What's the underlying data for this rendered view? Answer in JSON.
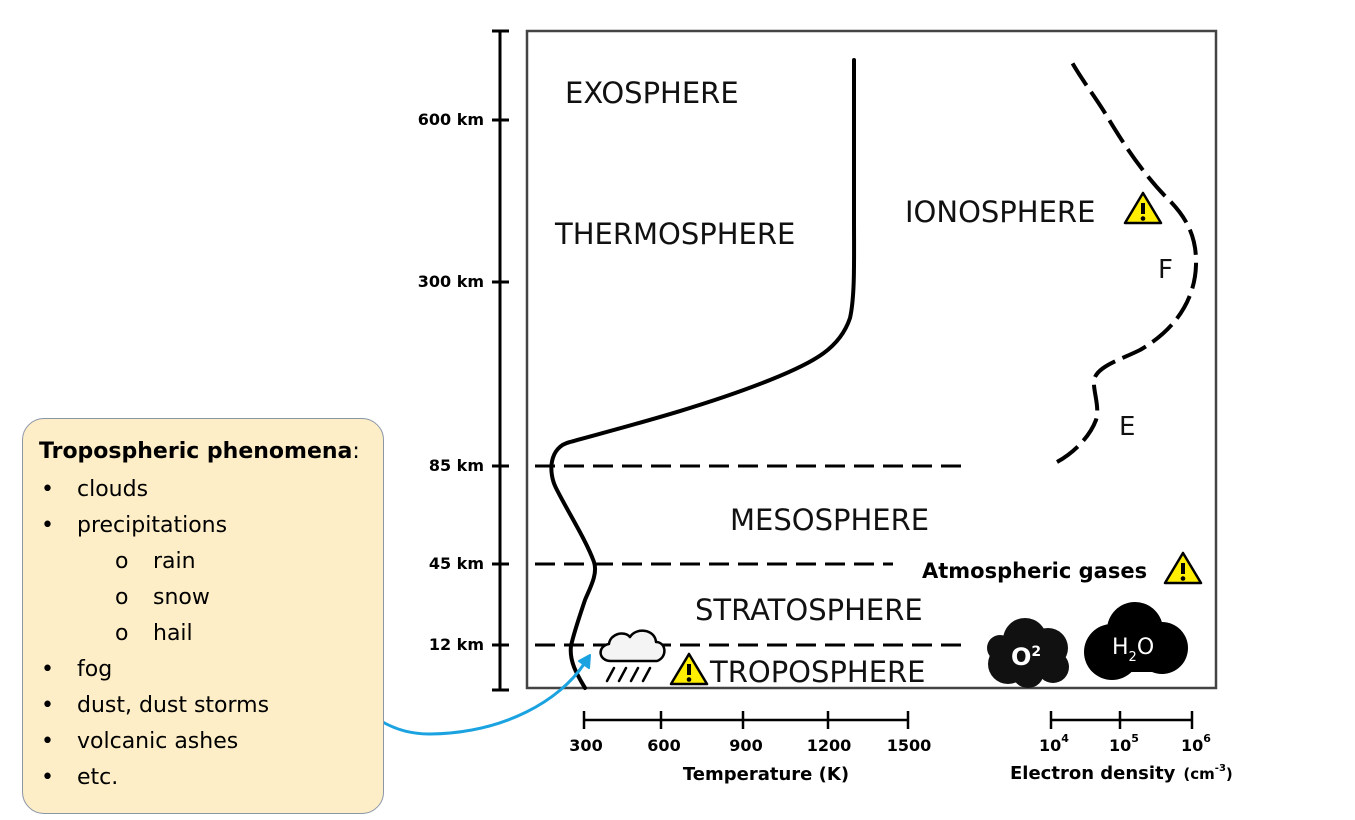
{
  "altitude_ticks": [
    {
      "label": "600 km"
    },
    {
      "label": "300 km"
    },
    {
      "label": "85 km"
    },
    {
      "label": "45 km"
    },
    {
      "label": "12 km"
    }
  ],
  "layers": {
    "exosphere": "EXOSPHERE",
    "thermosphere": "THERMOSPHERE",
    "ionosphere": "IONOSPHERE",
    "f_region": "F",
    "e_region": "E",
    "mesosphere": "MESOSPHERE",
    "stratosphere": "STRATOSPHERE",
    "troposphere": "TROPOSPHERE"
  },
  "atmospheric_gases": "Atmospheric gases",
  "gas_clouds": {
    "o2": {
      "base": "O",
      "sup": "2"
    },
    "h2o": {
      "base": "H",
      "sub": "2",
      "tail": "O"
    }
  },
  "temperature_axis": {
    "ticks": [
      "300",
      "600",
      "900",
      "1200",
      "1500"
    ],
    "label": "Temperature (K)"
  },
  "electron_axis": {
    "ticks": [
      {
        "base": "10",
        "exp": "4"
      },
      {
        "base": "10",
        "exp": "5"
      },
      {
        "base": "10",
        "exp": "6"
      }
    ],
    "label": "Electron density",
    "unit": {
      "base": "(cm",
      "exp": "-3",
      "close": ")"
    }
  },
  "callout": {
    "title": "Tropospheric phenomena",
    "title_suffix": ":",
    "items": [
      {
        "text": "clouds",
        "level": 1,
        "bullet": "•"
      },
      {
        "text": "precipitations",
        "level": 1,
        "bullet": "•"
      },
      {
        "text": "rain",
        "level": 2,
        "bullet": "o"
      },
      {
        "text": "snow",
        "level": 2,
        "bullet": "o"
      },
      {
        "text": "hail",
        "level": 2,
        "bullet": "o"
      },
      {
        "text": "fog",
        "level": 1,
        "bullet": "•"
      },
      {
        "text": "dust, dust storms",
        "level": 1,
        "bullet": "•"
      },
      {
        "text": "volcanic ashes",
        "level": 1,
        "bullet": "•"
      },
      {
        "text": "etc.",
        "level": 1,
        "bullet": "•"
      }
    ]
  },
  "icons": {
    "warning": "warning-icon",
    "rain_cloud": "rain-cloud-icon",
    "arrow": "curved-arrow",
    "color_arrow": "#1aa3e0",
    "color_warning": "#ffee00"
  }
}
